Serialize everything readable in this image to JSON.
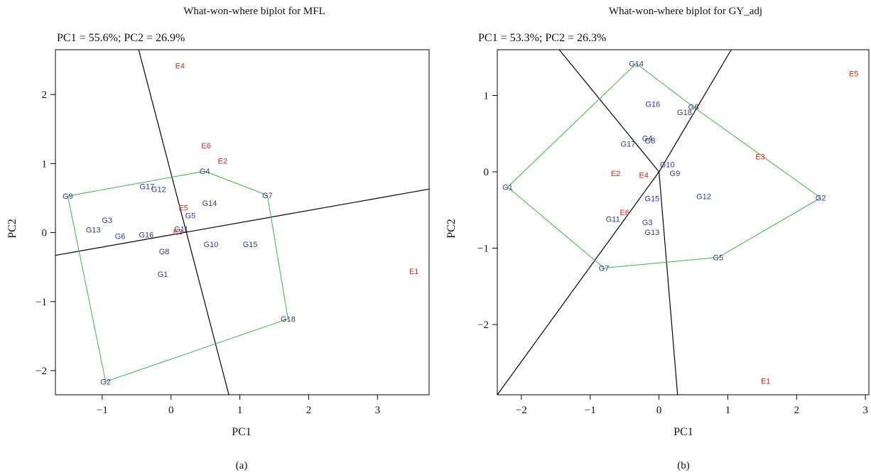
{
  "colors": {
    "genotype": "#2e3a8c",
    "environment": "#e2231a",
    "hull": "#3cb43c",
    "sector": "#000000"
  },
  "panels": [
    {
      "label": "(a)"
    },
    {
      "label": "(b)"
    }
  ],
  "chart_data": [
    {
      "type": "scatter",
      "title": "What-won-where biplot for MFL",
      "subtitle": "PC1 = 55.6%; PC2 = 26.9%",
      "xlabel": "PC1",
      "ylabel": "PC2",
      "xlim": [
        -1.68,
        3.75
      ],
      "ylim": [
        -2.35,
        2.65
      ],
      "xticks": [
        -1,
        0,
        1,
        2,
        3
      ],
      "yticks": [
        -2,
        -1,
        0,
        1,
        2
      ],
      "xtick_labels": [
        "−1",
        "0",
        "1",
        "2",
        "3"
      ],
      "ytick_labels": [
        "−2",
        "−1",
        "0",
        "1",
        "2"
      ],
      "series": [
        {
          "name": "Genotypes",
          "points": [
            {
              "label": "G9",
              "x": -1.5,
              "y": 0.53
            },
            {
              "label": "G3",
              "x": -0.93,
              "y": 0.18
            },
            {
              "label": "G13",
              "x": -1.13,
              "y": 0.04
            },
            {
              "label": "G6",
              "x": -0.74,
              "y": -0.05
            },
            {
              "label": "G16",
              "x": -0.36,
              "y": -0.03
            },
            {
              "label": "G17",
              "x": -0.35,
              "y": 0.67
            },
            {
              "label": "G12",
              "x": -0.18,
              "y": 0.63
            },
            {
              "label": "G4",
              "x": 0.49,
              "y": 0.89
            },
            {
              "label": "G7",
              "x": 1.4,
              "y": 0.54
            },
            {
              "label": "G14",
              "x": 0.56,
              "y": 0.43
            },
            {
              "label": "G5",
              "x": 0.28,
              "y": 0.25
            },
            {
              "label": "G11",
              "x": 0.15,
              "y": 0.05
            },
            {
              "label": "G10",
              "x": 0.58,
              "y": -0.17
            },
            {
              "label": "G15",
              "x": 1.15,
              "y": -0.17
            },
            {
              "label": "G8",
              "x": -0.1,
              "y": -0.27
            },
            {
              "label": "G1",
              "x": -0.12,
              "y": -0.6
            },
            {
              "label": "G18",
              "x": 1.7,
              "y": -1.25
            },
            {
              "label": "G2",
              "x": -0.95,
              "y": -2.16
            }
          ]
        },
        {
          "name": "Environments",
          "points": [
            {
              "label": "E4",
              "x": 0.13,
              "y": 2.42
            },
            {
              "label": "E6",
              "x": 0.51,
              "y": 1.26
            },
            {
              "label": "E2",
              "x": 0.75,
              "y": 1.04
            },
            {
              "label": "E5",
              "x": 0.18,
              "y": 0.36
            },
            {
              "label": "E3",
              "x": 0.1,
              "y": 0.01
            },
            {
              "label": "E1",
              "x": 3.53,
              "y": -0.56
            }
          ]
        }
      ],
      "hull": [
        "G9",
        "G4",
        "G7",
        "G18",
        "G2"
      ],
      "sector_lines": [
        {
          "x1": -0.47,
          "y1": 2.65,
          "x2": 0.84,
          "y2": -2.35
        },
        {
          "x1": -1.68,
          "y1": -0.33,
          "x2": 3.75,
          "y2": 0.63
        }
      ]
    },
    {
      "type": "scatter",
      "title": "What-won-where biplot for GY_adj",
      "subtitle": "PC1 = 53.3%; PC2 = 26.3%",
      "xlabel": "PC1",
      "ylabel": "PC2",
      "xlim": [
        -2.35,
        3.05
      ],
      "ylim": [
        -2.92,
        1.6
      ],
      "xticks": [
        -2,
        -1,
        0,
        1,
        2,
        3
      ],
      "yticks": [
        -2,
        -1,
        0,
        1
      ],
      "xtick_labels": [
        "−2",
        "−1",
        "0",
        "1",
        "2",
        "3"
      ],
      "ytick_labels": [
        "−2",
        "−1",
        "0",
        "1"
      ],
      "series": [
        {
          "name": "Genotypes",
          "points": [
            {
              "label": "G14",
              "x": -0.33,
              "y": 1.42
            },
            {
              "label": "G16",
              "x": -0.09,
              "y": 0.89
            },
            {
              "label": "G18",
              "x": 0.37,
              "y": 0.78
            },
            {
              "label": "G6",
              "x": 0.5,
              "y": 0.85
            },
            {
              "label": "G4",
              "x": -0.17,
              "y": 0.44
            },
            {
              "label": "G8",
              "x": -0.13,
              "y": 0.41
            },
            {
              "label": "G17",
              "x": -0.45,
              "y": 0.37
            },
            {
              "label": "G10",
              "x": 0.12,
              "y": 0.1
            },
            {
              "label": "G9",
              "x": 0.23,
              "y": -0.02
            },
            {
              "label": "G1",
              "x": -2.2,
              "y": -0.2
            },
            {
              "label": "G15",
              "x": -0.1,
              "y": -0.35
            },
            {
              "label": "G12",
              "x": 0.65,
              "y": -0.32
            },
            {
              "label": "G2",
              "x": 2.35,
              "y": -0.34
            },
            {
              "label": "G11",
              "x": -0.67,
              "y": -0.62
            },
            {
              "label": "G3",
              "x": -0.17,
              "y": -0.66
            },
            {
              "label": "G13",
              "x": -0.1,
              "y": -0.79
            },
            {
              "label": "G5",
              "x": 0.86,
              "y": -1.12
            },
            {
              "label": "G7",
              "x": -0.8,
              "y": -1.26
            }
          ]
        },
        {
          "name": "Environments",
          "points": [
            {
              "label": "E5",
              "x": 2.83,
              "y": 1.29
            },
            {
              "label": "E3",
              "x": 1.47,
              "y": 0.2
            },
            {
              "label": "E2",
              "x": -0.63,
              "y": -0.02
            },
            {
              "label": "E4",
              "x": -0.22,
              "y": -0.04
            },
            {
              "label": "E6",
              "x": -0.5,
              "y": -0.53
            },
            {
              "label": "E1",
              "x": 1.55,
              "y": -2.74
            }
          ]
        }
      ],
      "hull": [
        "G14",
        "G6",
        "G2",
        "G5",
        "G7",
        "G1"
      ],
      "sector_lines": [
        {
          "x1": -1.45,
          "y1": 1.6,
          "x2": 0,
          "y2": 0
        },
        {
          "x1": 0,
          "y1": 0,
          "x2": 1.05,
          "y2": 1.6
        },
        {
          "x1": 0,
          "y1": 0,
          "x2": 0.27,
          "y2": -2.92
        },
        {
          "x1": 0,
          "y1": 0,
          "x2": -2.35,
          "y2": -2.92
        }
      ]
    }
  ]
}
